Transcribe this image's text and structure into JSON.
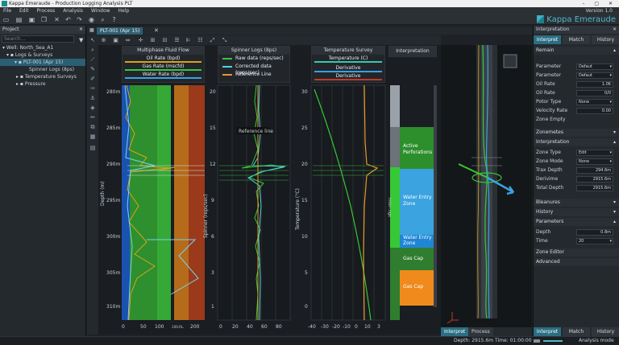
{
  "window": {
    "title": "Kappa Emeraude - Production Logging Analysis PLT",
    "controls": "–  ▢  ✕"
  },
  "menu": {
    "items": [
      "File",
      "Edit",
      "Process",
      "Analysis",
      "Window",
      "Help"
    ],
    "version": "Version 1.0"
  },
  "brand": {
    "name": "Kappa Emeraude"
  },
  "project": {
    "header": "Project",
    "search_placeholder": "Search...",
    "tree": [
      "Well: North_Sea_A1",
      "Logs & Surveys",
      "PLT-001 (Apr 15)",
      "Spinner Logs (8ps)",
      "Temperature Surveys",
      "Pressure"
    ]
  },
  "doc": {
    "tab": "PLT-001 (Apr 15)"
  },
  "tracks": {
    "flow": {
      "header": "Multiphase Fluid Flow",
      "legend": [
        "Oil Rate (bpd)",
        "Gas Rate (mscfd)",
        "Water Rate (bpd)"
      ],
      "legend_colors": [
        "#d9a21b",
        "#37c837",
        "#3aa3e0"
      ],
      "xticks": [
        "0",
        "50",
        "100",
        ".100.RL.",
        "200"
      ]
    },
    "spinner": {
      "header": "Spinner Logs (8ps)",
      "legend": [
        "Raw data (reps/sec)",
        "Corrected data (reps/sec)",
        "Reference Line"
      ],
      "annotation": "Reference line",
      "ylabel": "Spinner (reps/sec)",
      "yticks": [
        "20",
        "15",
        "12",
        "9",
        "6",
        "3",
        "1"
      ],
      "xticks": [
        "0",
        "20",
        "40",
        "60",
        "80"
      ]
    },
    "temperature": {
      "header": "Temperature Survey",
      "legend": [
        "Temperature (C)",
        "Derivative",
        "Derivative"
      ],
      "ylabel": "Temperature (°C)",
      "yticks": [
        "30",
        "25",
        "20",
        "15",
        "10",
        "5",
        "0"
      ],
      "xticks": [
        "-40",
        "-30",
        "-20",
        "-10",
        "0",
        "10",
        "3"
      ]
    },
    "interp": {
      "header": "Interpretation",
      "side_label": "Inter-.ngs",
      "zones": [
        {
          "label": "Active Perforations",
          "color": "#2c8f2c"
        },
        {
          "label": "Water Entry Zone",
          "color": "#3aa3e0"
        },
        {
          "label": "Water Entry Zone",
          "color": "#1f86d6"
        },
        {
          "label": "Gas Cap",
          "color": "#2f7d2f"
        },
        {
          "label": "Gas Cap",
          "color": "#f08a1c"
        }
      ]
    }
  },
  "depth_axis": {
    "label": "Depth (m)",
    "ticks": [
      "280m",
      "285m",
      "290m",
      "295m",
      "300m",
      "305m",
      "310m"
    ]
  },
  "bottom_tabs": [
    "Interpret",
    "Process"
  ],
  "status": {
    "depth": "Depth: 2915.6m",
    "time": "Time: 01:00:00",
    "mode": "Analysis mode"
  },
  "right": {
    "header": "Interpretation",
    "tabs": [
      "Interpret",
      "Match",
      "History"
    ],
    "bottom_tabs": [
      "Interpret",
      "Match",
      "History"
    ],
    "remain": "Remain",
    "params": [
      {
        "label": "Parameter",
        "value": "Defaut"
      },
      {
        "label": "Parameter",
        "value": "Defaut"
      },
      {
        "label": "Oil Rate",
        "value": "1.06"
      },
      {
        "label": "Oil Rate",
        "value": "0/0"
      },
      {
        "label": "Potor Type",
        "value": "None"
      },
      {
        "label": "Velocity Rate",
        "value": "0.00"
      },
      {
        "label": "Zone Empty",
        "value": ""
      }
    ],
    "sections": [
      "Zonemetes",
      "Interpretation"
    ],
    "interp_rows": [
      {
        "label": "Zone Type",
        "value": "Edit"
      },
      {
        "label": "Zone Mode",
        "value": "None"
      },
      {
        "label": "Trax Depth",
        "value": "294.6m"
      },
      {
        "label": "Derivime",
        "value": "2915.6m"
      },
      {
        "label": "Total Depth",
        "value": "2915.6m"
      }
    ],
    "more_sections": [
      "Bleanures",
      "History",
      "Parameters"
    ],
    "param_rows": [
      {
        "label": "Depth",
        "value": "0.8m"
      },
      {
        "label": "Time",
        "value": "20"
      }
    ],
    "tail": [
      "Zone Editor",
      "Advanced"
    ]
  }
}
